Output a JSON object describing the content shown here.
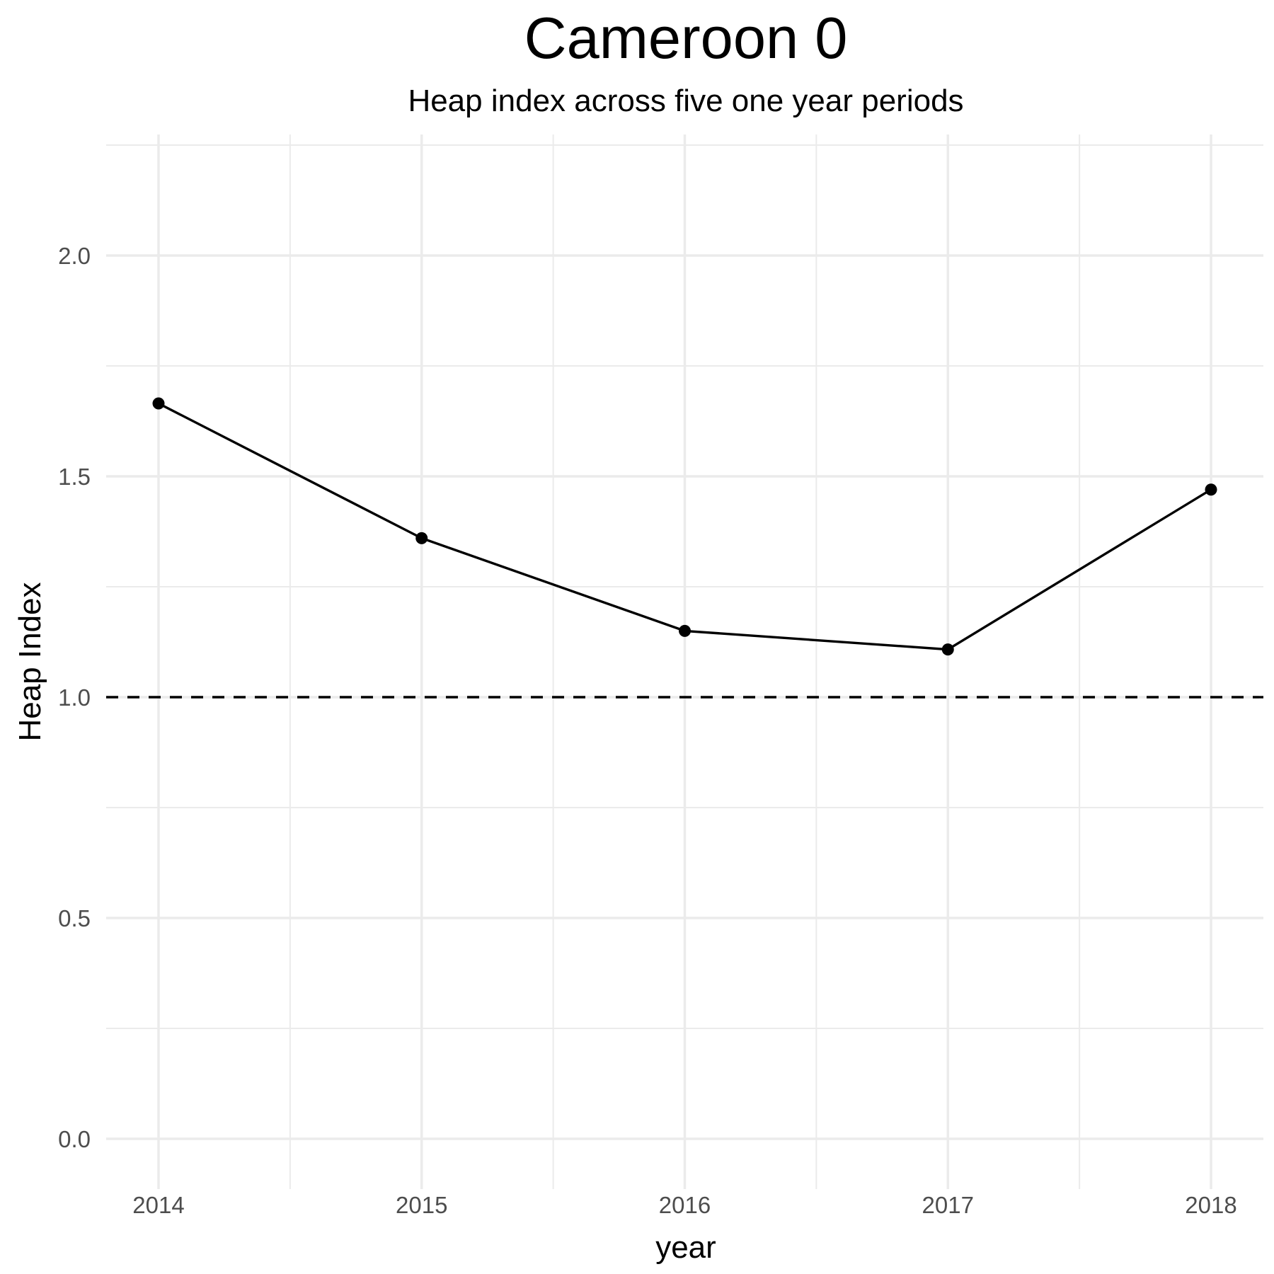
{
  "chart_data": {
    "type": "line",
    "title": "Cameroon 0",
    "subtitle": "Heap index across five one year periods",
    "xlabel": "year",
    "ylabel": "Heap Index",
    "x": [
      2014,
      2015,
      2016,
      2017,
      2018
    ],
    "x_tick_labels": [
      "2014",
      "2015",
      "2016",
      "2017",
      "2018"
    ],
    "y_tick_labels": [
      "0.0",
      "0.5",
      "1.0",
      "1.5",
      "2.0"
    ],
    "y_ticks": [
      0.0,
      0.5,
      1.0,
      1.5,
      2.0
    ],
    "xlim": [
      2013.8,
      2018.2
    ],
    "ylim": [
      -0.08,
      2.25
    ],
    "series": [
      {
        "values": [
          1.665,
          1.36,
          1.15,
          1.108,
          1.47
        ],
        "color": "#000000"
      }
    ],
    "reference_line": {
      "y": 1.0,
      "style": "dashed",
      "color": "#000000"
    },
    "grid": true,
    "legend": "none"
  }
}
